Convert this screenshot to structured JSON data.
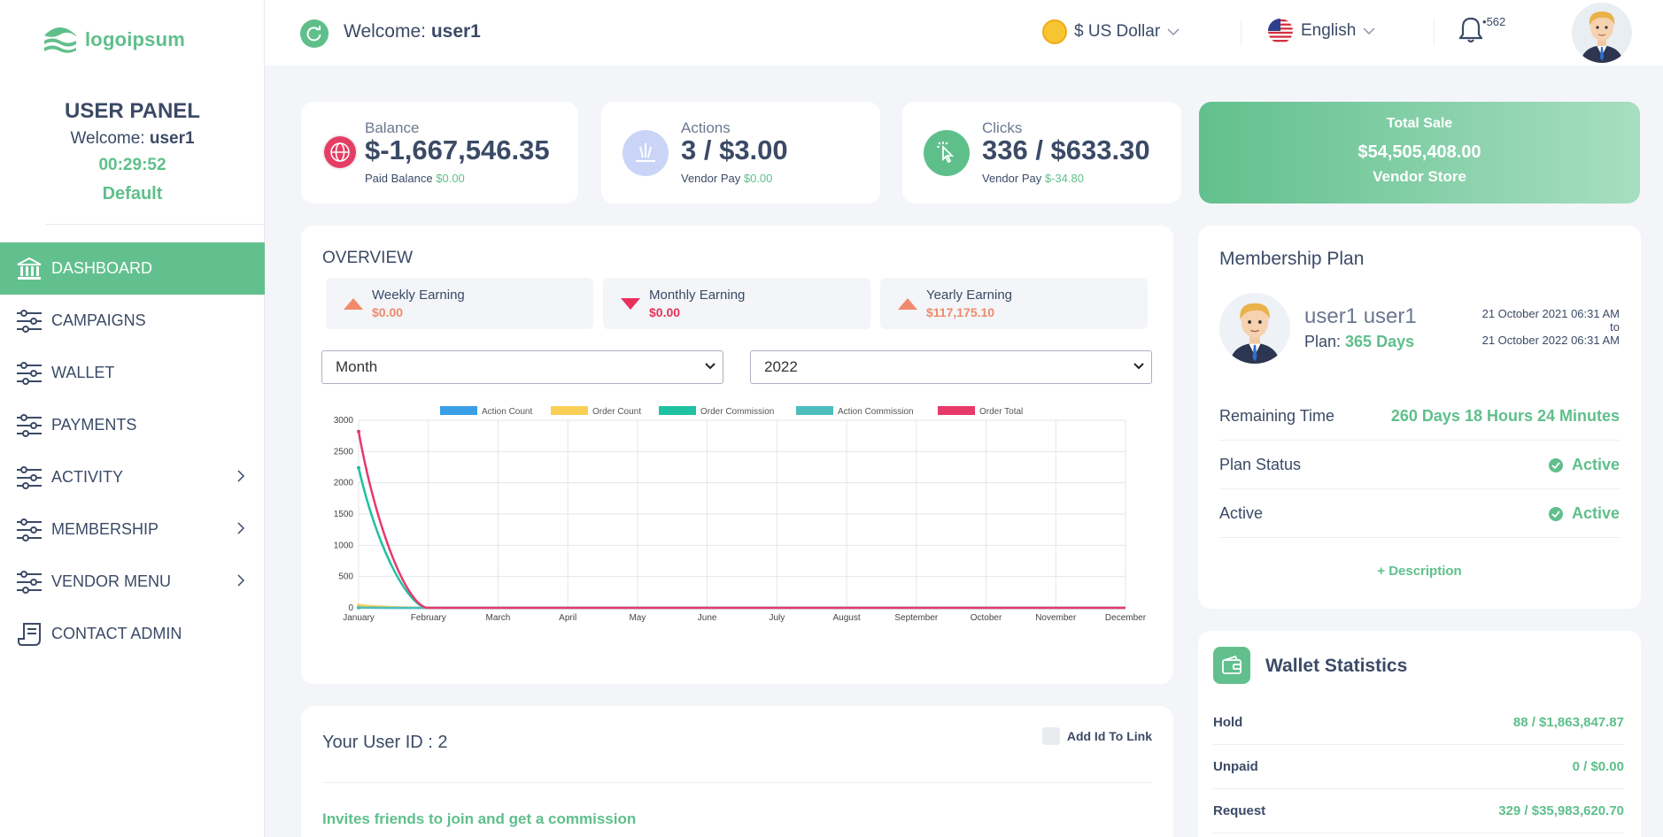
{
  "brand": {
    "logo_text": "logoipsum"
  },
  "panel": {
    "title": "USER PANEL",
    "welcome_prefix": "Welcome: ",
    "username": "user1",
    "timer": "00:29:52",
    "group": "Default"
  },
  "nav": [
    {
      "label": "DASHBOARD",
      "icon": "bank-icon",
      "active": true
    },
    {
      "label": "CAMPAIGNS",
      "icon": "sliders-icon"
    },
    {
      "label": "WALLET",
      "icon": "sliders-icon"
    },
    {
      "label": "PAYMENTS",
      "icon": "sliders-icon"
    },
    {
      "label": "ACTIVITY",
      "icon": "sliders-icon",
      "submenu": true
    },
    {
      "label": "MEMBERSHIP",
      "icon": "sliders-icon",
      "submenu": true
    },
    {
      "label": "VENDOR MENU",
      "icon": "sliders-icon",
      "submenu": true
    },
    {
      "label": "CONTACT ADMIN",
      "icon": "receipt-icon"
    }
  ],
  "header": {
    "welcome_prefix": "Welcome: ",
    "username": "user1",
    "currency": "$ US Dollar",
    "language": "English",
    "notifications": "562"
  },
  "stats": {
    "balance": {
      "label": "Balance",
      "value": "$-1,667,546.35",
      "sub_label": "Paid Balance",
      "sub_value": "$0.00"
    },
    "actions": {
      "label": "Actions",
      "value": "3 / $3.00",
      "sub_label": "Vendor Pay",
      "sub_value": "$0.00"
    },
    "clicks": {
      "label": "Clicks",
      "value": "336 / $633.30",
      "sub_label": "Vendor Pay",
      "sub_value": "$-34.80"
    },
    "total_sale": {
      "label": "Total Sale",
      "value": "$54,505,408.00",
      "sub_label": "Vendor Store"
    }
  },
  "overview": {
    "title": "OVERVIEW",
    "weekly": {
      "label": "Weekly Earning",
      "value": "$0.00",
      "trend": "up",
      "color": "#f08a6b"
    },
    "monthly": {
      "label": "Monthly Earning",
      "value": "$0.00",
      "trend": "down",
      "color": "#e8315b"
    },
    "yearly": {
      "label": "Yearly Earning",
      "value": "$117,175.10",
      "trend": "up",
      "color": "#f08a6b"
    },
    "period_select": "Month",
    "year_select": "2022"
  },
  "chart_data": {
    "type": "line",
    "x": [
      "January",
      "February",
      "March",
      "April",
      "May",
      "June",
      "July",
      "August",
      "September",
      "October",
      "November",
      "December"
    ],
    "ylim": [
      0,
      3000
    ],
    "yticks": [
      0,
      500,
      1000,
      1500,
      2000,
      2500,
      3000
    ],
    "legend_position": "top",
    "grid": true,
    "series": [
      {
        "name": "Action Count",
        "color": "#3a9fe6",
        "values": [
          3,
          0,
          0,
          0,
          0,
          0,
          0,
          0,
          0,
          0,
          0,
          0
        ]
      },
      {
        "name": "Order Count",
        "color": "#f9cf56",
        "values": [
          40,
          0,
          0,
          0,
          0,
          0,
          0,
          0,
          0,
          0,
          0,
          0
        ]
      },
      {
        "name": "Order Commission",
        "color": "#1ec1a2",
        "values": [
          2240,
          0,
          0,
          0,
          0,
          0,
          0,
          0,
          0,
          0,
          0,
          0
        ]
      },
      {
        "name": "Action Commission",
        "color": "#4dbdbd",
        "values": [
          3,
          0,
          0,
          0,
          0,
          0,
          0,
          0,
          0,
          0,
          0,
          0
        ]
      },
      {
        "name": "Order Total",
        "color": "#e8396b",
        "values": [
          2820,
          0,
          0,
          0,
          0,
          0,
          0,
          0,
          0,
          0,
          0,
          0
        ]
      }
    ]
  },
  "membership": {
    "title": "Membership Plan",
    "name": "user1 user1",
    "plan_prefix": "Plan: ",
    "plan": "365 Days",
    "start": "21 October 2021 06:31 AM",
    "to": "to",
    "end": "21 October 2022 06:31 AM",
    "rows": [
      {
        "label": "Remaining Time",
        "value": "260 Days 18 Hours 24 Minutes",
        "check": false
      },
      {
        "label": "Plan Status",
        "value": "Active",
        "check": true
      },
      {
        "label": "Active",
        "value": "Active",
        "check": true
      }
    ],
    "description_link": "+ Description"
  },
  "wallet": {
    "title": "Wallet Statistics",
    "rows": [
      {
        "label": "Hold",
        "value": "88 / $1,863,847.87"
      },
      {
        "label": "Unpaid",
        "value": "0 / $0.00"
      },
      {
        "label": "Request",
        "value": "329 / $35,983,620.70"
      }
    ]
  },
  "userid": {
    "title": "Your User ID : 2",
    "checkbox_label": "Add Id To Link",
    "invite": "Invites friends to join and get a commission"
  },
  "colors": {
    "accent": "#5fbf8b",
    "text": "#3b4a66"
  }
}
